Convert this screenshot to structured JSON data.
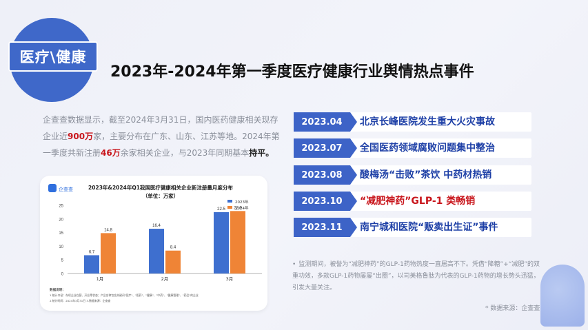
{
  "badge": "医疗\\健康",
  "title": "2023年-2024年第一季度医疗健康行业舆情热点事件",
  "intro": {
    "p1": "企查查数据显示，截至2024年3月31日，国内医药健康相关现存企业近",
    "v1": "900万",
    "p2": "家，主要分布在广东、山东、江苏等地。2024年第一季度共新注册",
    "v2": "46万",
    "p3": "余家相关企业，与2023年同期基本",
    "v3": "持平。"
  },
  "chart": {
    "logo": "企查查",
    "title": "2023年&2024年Q1我国医疗健康相关企业新注册量月度分布",
    "unit": "（单位：万家）",
    "colors": {
      "s2023": "#3e6fcf",
      "s2024": "#ef8436"
    },
    "notes": [
      "数据说明：",
      "1.统计口径：存续企业在营、开业等状态；产品名称包含关键词\"医疗\"、\"医药\"、\"健康\"、\"中药\"、\"健康管理\"、\"药品\"的企业",
      "2.统计时间：2024年3月31日    3.数据来源：企查查"
    ]
  },
  "chart_data": {
    "type": "bar",
    "categories": [
      "1月",
      "2月",
      "3月"
    ],
    "series": [
      {
        "name": "2023年",
        "values": [
          6.7,
          16.4,
          22.5
        ]
      },
      {
        "name": "2024年",
        "values": [
          14.8,
          8.4,
          22.9
        ]
      }
    ],
    "yticks": [
      "0",
      "5",
      "10",
      "15",
      "20",
      "25"
    ],
    "ylim": [
      0,
      25
    ],
    "legend": "top-right",
    "grid": false
  },
  "events": [
    {
      "date": "2023.04",
      "text": "北京长峰医院发生重大火灾事故",
      "highlight": false
    },
    {
      "date": "2023.07",
      "text": "全国医药领域腐败问题集中整治",
      "highlight": false
    },
    {
      "date": "2023.08",
      "text": "酸梅汤“击败”茶饮 中药材热销",
      "highlight": false
    },
    {
      "date": "2023.10",
      "text": "“减肥神药”GLP-1 类畅销",
      "highlight": true
    },
    {
      "date": "2023.11",
      "text": "南宁城和医院“贩卖出生证”事件",
      "highlight": false
    }
  ],
  "note": {
    "bullet": "•",
    "text": "监测期间，被誉为“减肥神药”的GLP-1药物热度一直居高不下。凭借“降糖”+“减肥”的双重功效，多款GLP-1药物屡屡“出圈”，以司美格鲁肽为代表的GLP-1药物的增长势头迅猛，引发大量关注。"
  },
  "source": "* 数据来源：企查查"
}
